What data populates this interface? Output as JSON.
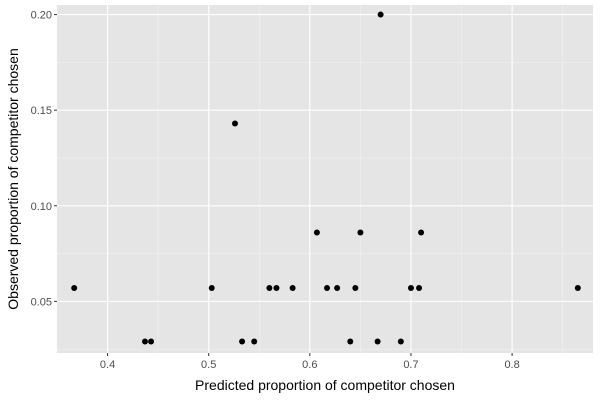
{
  "chart_data": {
    "type": "scatter",
    "title": "",
    "xlabel": "Predicted proportion of competitor chosen",
    "ylabel": "Observed proportion of competitor chosen",
    "xlim": [
      0.35,
      0.88
    ],
    "ylim": [
      0.023,
      0.205
    ],
    "x_ticks": [
      0.4,
      0.5,
      0.6,
      0.7,
      0.8
    ],
    "y_ticks": [
      0.05,
      0.1,
      0.15,
      0.2
    ],
    "x_tick_labels": [
      "0.4",
      "0.5",
      "0.6",
      "0.7",
      "0.8"
    ],
    "y_tick_labels": [
      "0.05",
      "0.10",
      "0.15",
      "0.20"
    ],
    "grid": true,
    "theme": "ggplot2 grey",
    "colors": {
      "panel_background": "#e5e5e5",
      "grid_major": "#ffffff",
      "grid_minor": "#f2f2f2",
      "point": "#000000",
      "tick_label": "#4d4d4d",
      "axis_title": "#000000"
    },
    "points": [
      {
        "x": 0.367,
        "y": 0.057
      },
      {
        "x": 0.437,
        "y": 0.029
      },
      {
        "x": 0.443,
        "y": 0.029
      },
      {
        "x": 0.503,
        "y": 0.057
      },
      {
        "x": 0.526,
        "y": 0.143
      },
      {
        "x": 0.533,
        "y": 0.029
      },
      {
        "x": 0.545,
        "y": 0.029
      },
      {
        "x": 0.56,
        "y": 0.057
      },
      {
        "x": 0.567,
        "y": 0.057
      },
      {
        "x": 0.583,
        "y": 0.057
      },
      {
        "x": 0.607,
        "y": 0.086
      },
      {
        "x": 0.617,
        "y": 0.057
      },
      {
        "x": 0.627,
        "y": 0.057
      },
      {
        "x": 0.64,
        "y": 0.029
      },
      {
        "x": 0.645,
        "y": 0.057
      },
      {
        "x": 0.65,
        "y": 0.086
      },
      {
        "x": 0.667,
        "y": 0.029
      },
      {
        "x": 0.67,
        "y": 0.2
      },
      {
        "x": 0.69,
        "y": 0.029
      },
      {
        "x": 0.7,
        "y": 0.057
      },
      {
        "x": 0.708,
        "y": 0.057
      },
      {
        "x": 0.71,
        "y": 0.086
      },
      {
        "x": 0.865,
        "y": 0.057
      }
    ]
  }
}
